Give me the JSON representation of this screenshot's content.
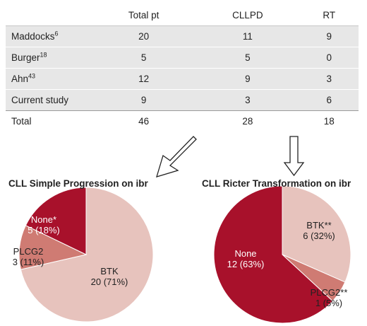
{
  "table": {
    "headers": [
      "",
      "Total pt",
      "CLLPD",
      "RT"
    ],
    "rows": [
      {
        "study": "Maddocks",
        "ref": "6",
        "total": "20",
        "cllpd": "11",
        "rt": "9"
      },
      {
        "study": "Burger",
        "ref": "18",
        "total": "5",
        "cllpd": "5",
        "rt": "0"
      },
      {
        "study": "Ahn",
        "ref": "43",
        "total": "12",
        "cllpd": "9",
        "rt": "3"
      },
      {
        "study": "Current study",
        "ref": "",
        "total": "9",
        "cllpd": "3",
        "rt": "6"
      }
    ],
    "total_row": {
      "label": "Total",
      "total": "46",
      "cllpd": "28",
      "rt": "18"
    }
  },
  "chart_data": [
    {
      "type": "pie",
      "title": "CLL Simple Progression on ibr",
      "slices": [
        {
          "label": "BTK",
          "count": 20,
          "percent_label": "(71%)",
          "color": "#e7c3bd"
        },
        {
          "label": "PLCG2",
          "count": 3,
          "percent_label": "(11%)",
          "color": "#cf7b73"
        },
        {
          "label": "None*",
          "count": 5,
          "percent_label": "(18%)",
          "color": "#a8112b"
        }
      ]
    },
    {
      "type": "pie",
      "title": "CLL Ricter Transformation on ibr",
      "slices": [
        {
          "label": "BTK**",
          "count": 6,
          "percent_label": "(32%)",
          "color": "#e7c3bd"
        },
        {
          "label": "PLCG2**",
          "count": 1,
          "percent_label": "(5%)",
          "color": "#cf7b73"
        },
        {
          "label": "None",
          "count": 12,
          "percent_label": "(63%)",
          "color": "#a8112b"
        }
      ]
    }
  ],
  "colors": {
    "arrow": "#222222",
    "slice_edge": "#ffffff"
  }
}
